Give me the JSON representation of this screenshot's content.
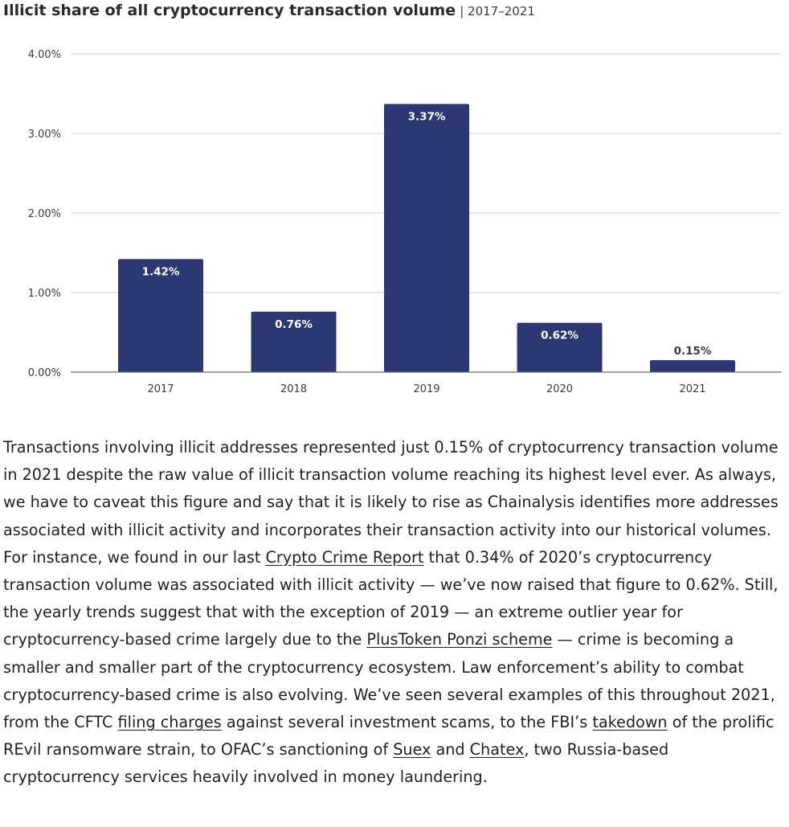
{
  "chart": {
    "title": "Illicit share of all cryptocurrency transaction volume",
    "subtitle": "| 2017–2021"
  },
  "chart_data": {
    "type": "bar",
    "title": "Illicit share of all cryptocurrency transaction volume",
    "subtitle": "| 2017–2021",
    "categories": [
      "2017",
      "2018",
      "2019",
      "2020",
      "2021"
    ],
    "values": [
      1.42,
      0.76,
      3.37,
      0.62,
      0.15
    ],
    "value_labels": [
      "1.42%",
      "0.76%",
      "3.37%",
      "0.62%",
      "0.15%"
    ],
    "yticks": [
      "0.00%",
      "1.00%",
      "2.00%",
      "3.00%",
      "4.00%"
    ],
    "ylim": [
      0,
      4
    ],
    "xlabel": "",
    "ylabel": "",
    "grid": true,
    "bar_color": "#2b3873",
    "inside_label_color": "#ffffff",
    "outside_label_color": "#3a3a3a",
    "grid_color": "#d0d0d0",
    "baseline_color": "#666666"
  },
  "article": {
    "p1": "Transactions involving illicit addresses represented just 0.15% of cryptocurrency transaction volume in 2021 despite the raw value of illicit transaction volume reaching its highest level ever. As always, we have to caveat this figure and say that it is likely to rise as Chainalysis identifies more addresses associated with illicit activity and incorporates their transaction activity into our historical volumes. For instance, we found in our last ",
    "link_crypto_crime_report": "Crypto Crime Report",
    "p2": " that 0.34% of 2020’s cryptocurrency transaction volume was associated with illicit activity — we’ve now raised that figure to 0.62%. Still, the yearly trends suggest that with the exception of 2019 — an extreme outlier year for cryptocurrency-based crime largely due to the ",
    "link_plustoken": "PlusToken Ponzi scheme",
    "p3": " — crime is becoming a smaller and smaller part of the cryptocurrency ecosystem. Law enforcement’s ability to combat cryptocurrency-based crime is also evolving. We’ve seen several examples of this throughout 2021, from the CFTC ",
    "link_filing_charges": "filing charges",
    "p4": " against several investment scams, to the FBI’s ",
    "link_takedown": "takedown",
    "p5": " of the prolific REvil ransomware strain, to OFAC’s sanctioning of ",
    "link_suex": "Suex",
    "p6": " and ",
    "link_chatex": "Chatex",
    "p7": ", two Russia-based cryptocurrency services heavily involved in money laundering."
  }
}
